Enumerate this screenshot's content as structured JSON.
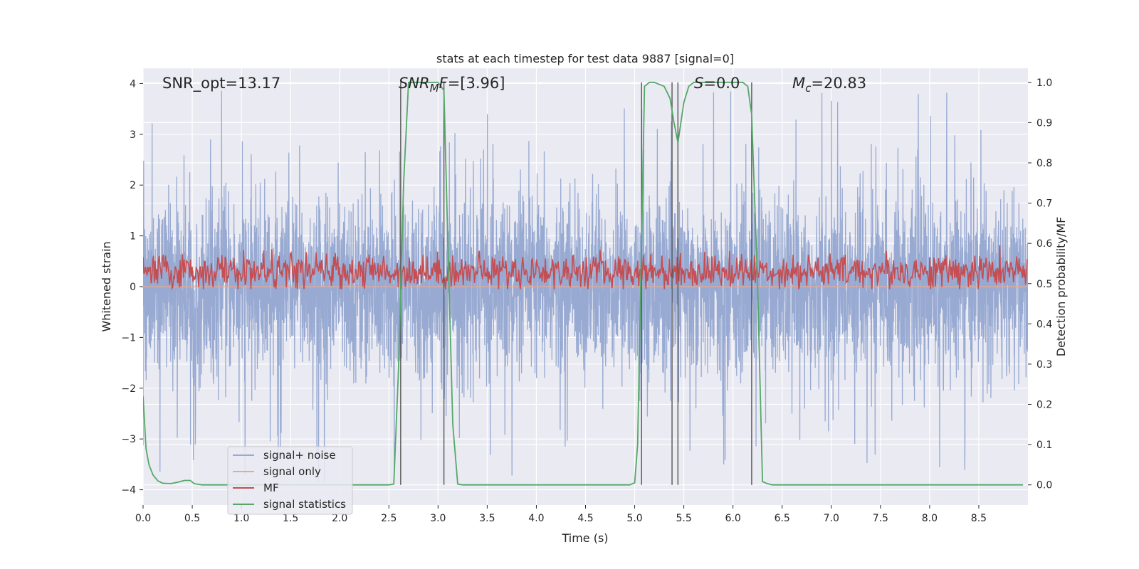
{
  "chart_data": {
    "type": "line",
    "title": "stats at each timestep for test data 9887 [signal=0]",
    "xlabel": "Time (s)",
    "ylabel_left": "Whitened strain",
    "ylabel_right": "Detection probability/MF",
    "xlim": [
      0,
      9.0
    ],
    "ylim_left": [
      -4.3,
      4.3
    ],
    "ylim_right": [
      -0.05,
      1.035
    ],
    "x_ticks": [
      0.0,
      0.5,
      1.0,
      1.5,
      2.0,
      2.5,
      3.0,
      3.5,
      4.0,
      4.5,
      5.0,
      5.5,
      6.0,
      6.5,
      7.0,
      7.5,
      8.0,
      8.5
    ],
    "x_tick_labels": [
      "0.0",
      "0.5",
      "1.0",
      "1.5",
      "2.0",
      "2.5",
      "3.0",
      "3.5",
      "4.0",
      "4.5",
      "5.0",
      "5.5",
      "6.0",
      "6.5",
      "7.0",
      "7.5",
      "8.0",
      "8.5"
    ],
    "y_ticks_left": [
      4,
      3,
      2,
      1,
      0,
      -1,
      -2,
      -3,
      -4
    ],
    "y_tick_labels_left": [
      "4",
      "3",
      "2",
      "1",
      "0",
      "−1",
      "−2",
      "−3",
      "−4"
    ],
    "y_ticks_right": [
      1.0,
      0.9,
      0.8,
      0.7,
      0.6,
      0.5,
      0.4,
      0.3,
      0.2,
      0.1,
      0.0
    ],
    "y_tick_labels_right": [
      "1.0",
      "0.9",
      "0.8",
      "0.7",
      "0.6",
      "0.5",
      "0.4",
      "0.3",
      "0.2",
      "0.1",
      "0.0"
    ],
    "annotations": {
      "snr_opt": "SNR_opt=13.17",
      "snr_mf_sym": "SNR",
      "snr_mf_sub": "M",
      "snr_mf_f": "F",
      "snr_mf_val": "=[3.96]",
      "s_sym": "S",
      "s_val": "=0.0",
      "mc_sym": "M",
      "mc_sub": "c",
      "mc_val": "=20.83"
    },
    "legend": {
      "placement": "lower-left",
      "entries": [
        "signal+ noise",
        "signal only",
        "MF",
        "signal statistics"
      ]
    },
    "colors": {
      "noise": "#98aad2",
      "signal_only": "#eaa88d",
      "mf": "#c44e52",
      "stats": "#55a868",
      "vline": "#555555",
      "plot_bg": "#eaeaf2",
      "grid": "#ffffff"
    },
    "vertical_lines_x": [
      2.62,
      3.06,
      5.07,
      5.38,
      5.44,
      6.19
    ],
    "noise_series": {
      "name": "signal+ noise",
      "sample_rate": 512,
      "duration": 9.0,
      "core_band": [
        -1.6,
        1.5
      ],
      "peak_range": [
        -4.0,
        3.9
      ]
    },
    "mf_series": {
      "name": "MF",
      "mean": 0.3,
      "range": [
        -0.05,
        1.0
      ],
      "units": "left_axis"
    },
    "stats_series": {
      "name": "signal statistics",
      "x": [
        0.0,
        0.03,
        0.06,
        0.1,
        0.15,
        0.2,
        0.28,
        0.36,
        0.42,
        0.48,
        0.52,
        0.6,
        1.0,
        1.5,
        2.0,
        2.5,
        2.55,
        2.6,
        2.65,
        2.7,
        2.8,
        2.9,
        3.0,
        3.06,
        3.1,
        3.15,
        3.2,
        3.25,
        3.5,
        4.0,
        4.5,
        4.95,
        5.0,
        5.03,
        5.07,
        5.1,
        5.15,
        5.2,
        5.3,
        5.36,
        5.4,
        5.44,
        5.5,
        5.55,
        5.6,
        6.0,
        6.1,
        6.15,
        6.19,
        6.25,
        6.3,
        6.35,
        6.4,
        7.0,
        8.0,
        8.95
      ],
      "y": [
        0.22,
        0.09,
        0.05,
        0.025,
        0.01,
        0.004,
        0.003,
        0.007,
        0.011,
        0.011,
        0.003,
        0.0,
        0.0,
        0.0,
        0.0,
        0.0,
        0.002,
        0.3,
        0.75,
        1.0,
        1.0,
        1.0,
        1.0,
        0.98,
        0.6,
        0.15,
        0.002,
        0.0,
        0.0,
        0.0,
        0.0,
        0.0,
        0.005,
        0.1,
        0.6,
        0.99,
        1.0,
        1.0,
        0.99,
        0.96,
        0.9,
        0.85,
        0.95,
        0.99,
        1.0,
        1.0,
        1.0,
        0.99,
        0.92,
        0.5,
        0.008,
        0.003,
        0.0,
        0.0,
        0.0,
        0.0
      ]
    }
  }
}
